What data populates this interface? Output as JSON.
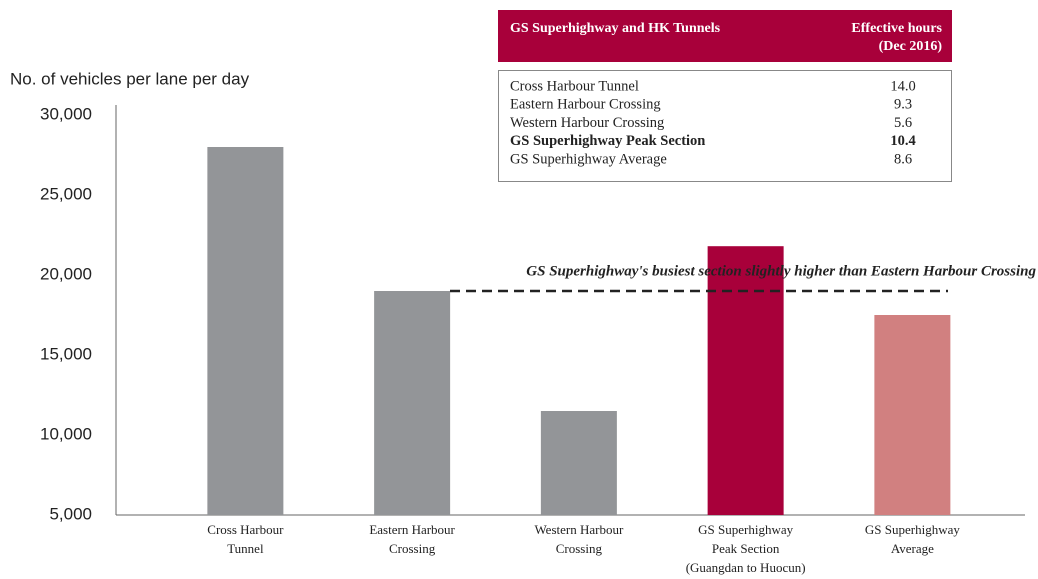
{
  "chart_data": {
    "type": "bar",
    "y_axis_label": "No. of vehicles per lane per day",
    "categories": [
      [
        "Cross Harbour",
        "Tunnel"
      ],
      [
        "Eastern Harbour",
        "Crossing"
      ],
      [
        "Western Harbour",
        "Crossing"
      ],
      [
        "GS Superhighway",
        "Peak Section",
        "(Guangdan to Huocun)"
      ],
      [
        "GS Superhighway",
        "Average"
      ]
    ],
    "values": [
      28000,
      19000,
      11500,
      21800,
      17500
    ],
    "colors": [
      "#939598",
      "#939598",
      "#939598",
      "#a8003a",
      "#d18080"
    ],
    "ylim": [
      5000,
      30000
    ],
    "yticks": [
      {
        "value": 5000,
        "label": "5,000"
      },
      {
        "value": 10000,
        "label": "10,000"
      },
      {
        "value": 15000,
        "label": "15,000"
      },
      {
        "value": 20000,
        "label": "20,000"
      },
      {
        "value": 25000,
        "label": "25,000"
      },
      {
        "value": 30000,
        "label": "30,000"
      }
    ],
    "grid": false,
    "reference_line": {
      "value": 19000,
      "label": "GS Superhighway's busiest section slightly higher than Eastern Harbour Crossing"
    },
    "table": {
      "header": [
        "GS Superhighway and HK Tunnels",
        [
          "Effective hours",
          "(Dec 2016)"
        ]
      ],
      "rows": [
        [
          "Cross Harbour Tunnel",
          "14.0"
        ],
        [
          "Eastern Harbour Crossing",
          "9.3"
        ],
        [
          "Western Harbour Crossing",
          "5.6"
        ],
        [
          "GS Superhighway Peak Section",
          "10.4"
        ],
        [
          "GS Superhighway Average",
          "8.6"
        ]
      ],
      "bold_row": 3
    }
  }
}
